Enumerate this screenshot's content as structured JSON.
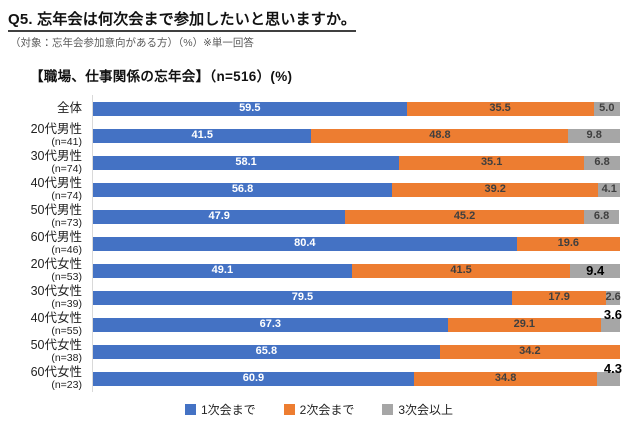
{
  "header": {
    "title": "Q5. 忘年会は何次会まで参加したいと思いますか。",
    "subtitle": "（対象：忘年会参加意向がある方）（%）※単一回答",
    "section_heading": "【職場、仕事関係の忘年会】（n=516）(%)"
  },
  "colors": {
    "series1": "#4472C4",
    "series2": "#ED7D31",
    "series3": "#A6A6A6",
    "axis_line": "#D9D9D9",
    "label_on_blue": "#FFFFFF",
    "label_dark": "#3F3F3F",
    "emphasis": "#000000"
  },
  "legend": [
    {
      "label": "1次会まで",
      "color": "#4472C4"
    },
    {
      "label": "2次会まで",
      "color": "#ED7D31"
    },
    {
      "label": "3次会以上",
      "color": "#A6A6A6"
    }
  ],
  "chart_data": {
    "type": "bar",
    "orientation": "horizontal-stacked",
    "title": "【職場、仕事関係の忘年会】（n=516）(%)",
    "xlabel": "",
    "ylabel": "",
    "xlim": [
      0,
      100
    ],
    "grid": false,
    "legend_position": "bottom",
    "categories": [
      "全体",
      "20代男性",
      "30代男性",
      "40代男性",
      "50代男性",
      "60代男性",
      "20代女性",
      "30代女性",
      "40代女性",
      "50代女性",
      "60代女性"
    ],
    "category_n": [
      "",
      "(n=41)",
      "(n=74)",
      "(n=74)",
      "(n=73)",
      "(n=46)",
      "(n=53)",
      "(n=39)",
      "(n=55)",
      "(n=38)",
      "(n=23)"
    ],
    "series": [
      {
        "name": "1次会まで",
        "values": [
          59.5,
          41.5,
          58.1,
          56.8,
          47.9,
          80.4,
          49.1,
          79.5,
          67.3,
          65.8,
          60.9
        ]
      },
      {
        "name": "2次会まで",
        "values": [
          35.5,
          48.8,
          35.1,
          39.2,
          45.2,
          19.6,
          41.5,
          17.9,
          29.1,
          34.2,
          34.8
        ]
      },
      {
        "name": "3次会以上",
        "values": [
          5.0,
          9.8,
          6.8,
          4.1,
          6.8,
          0,
          9.4,
          2.6,
          3.6,
          0,
          4.3
        ]
      }
    ],
    "emphasized_third": [
      false,
      false,
      false,
      false,
      false,
      false,
      true,
      false,
      true,
      false,
      true
    ]
  }
}
